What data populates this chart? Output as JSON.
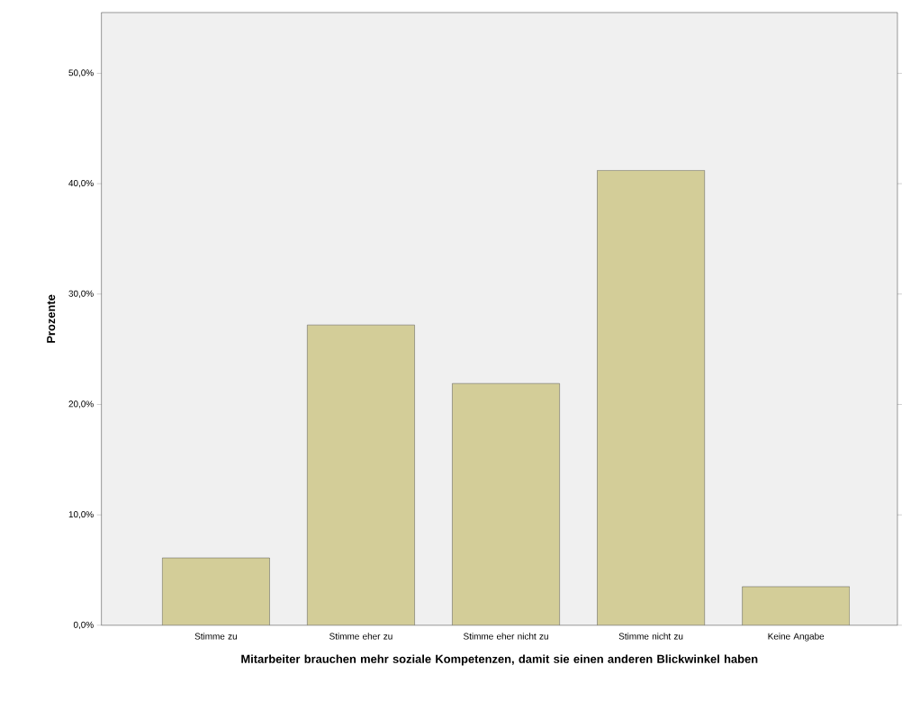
{
  "chart_data": {
    "type": "bar",
    "xlabel": "Mitarbeiter brauchen mehr soziale Kompetenzen, damit sie einen anderen Blickwinkel haben",
    "ylabel": "Prozente",
    "categories": [
      "Stimme zu",
      "Stimme eher zu",
      "Stimme eher nicht zu",
      "Stimme nicht zu",
      "Keine Angabe"
    ],
    "values": [
      6.1,
      27.2,
      21.9,
      41.2,
      3.5
    ],
    "color": "#d3cd98",
    "ylim": [
      0,
      55.5
    ],
    "yticks": [
      {
        "value": 0,
        "label": "0,0%"
      },
      {
        "value": 10,
        "label": "10,0%"
      },
      {
        "value": 20,
        "label": "20,0%"
      },
      {
        "value": 30,
        "label": "30,0%"
      },
      {
        "value": 40,
        "label": "40,0%"
      },
      {
        "value": 50,
        "label": "50,0%"
      }
    ]
  }
}
